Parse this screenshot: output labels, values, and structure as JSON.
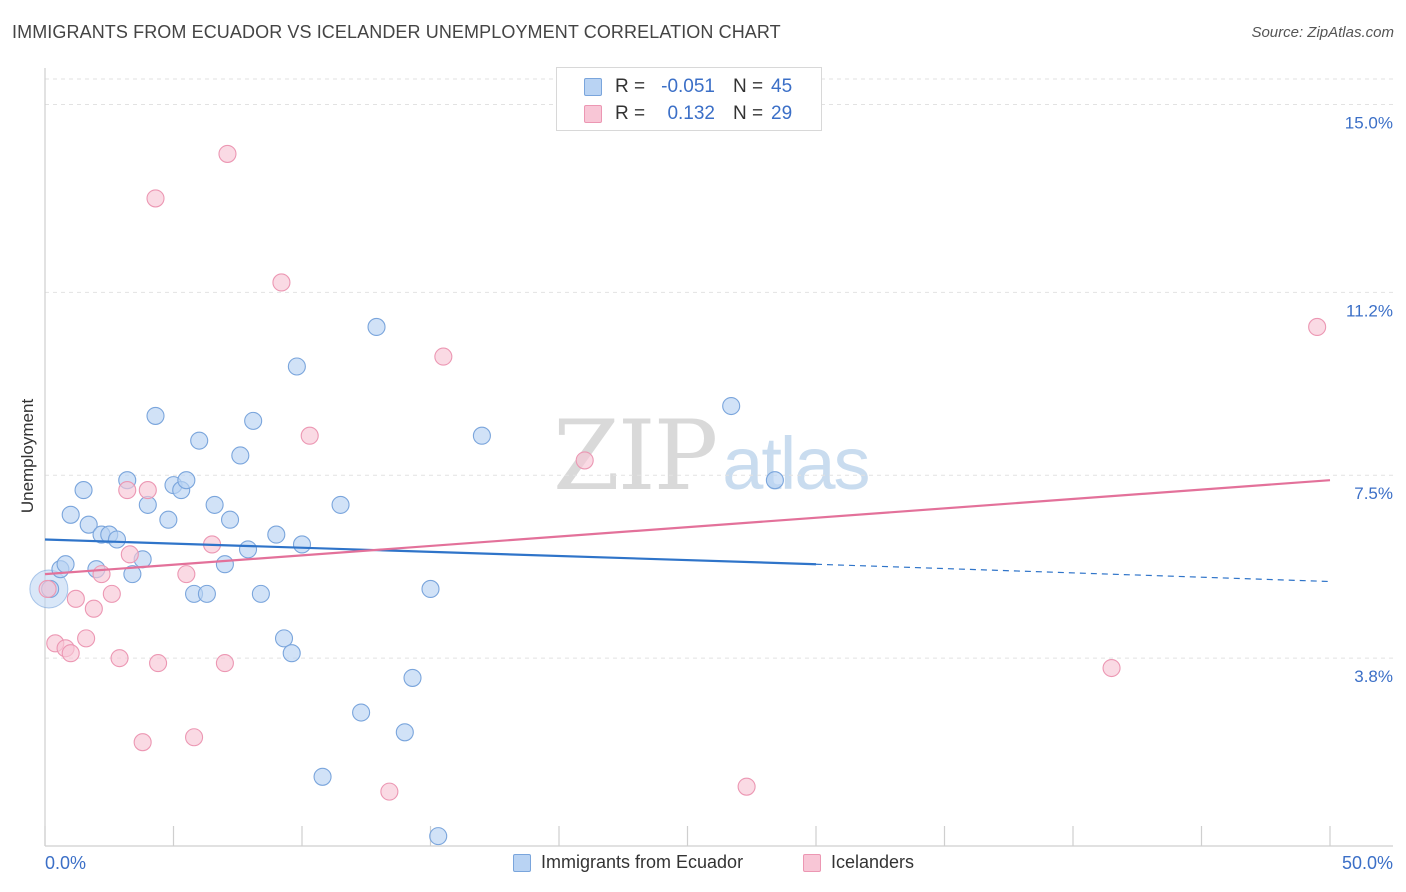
{
  "header": {
    "title": "IMMIGRANTS FROM ECUADOR VS ICELANDER UNEMPLOYMENT CORRELATION CHART",
    "source": "Source: ZipAtlas.com"
  },
  "watermark": {
    "zip": "ZIP",
    "atlas": "atlas"
  },
  "legend_top": {
    "r_label": "R =",
    "n_label": "N =",
    "rows": [
      {
        "r": "-0.051",
        "n": "45"
      },
      {
        "r": "0.132",
        "n": "29"
      }
    ]
  },
  "colors": {
    "blue_fill": "#b9d3f3",
    "blue_stroke": "#7aa5dc",
    "blue_line": "#2f74c9",
    "pink_fill": "#f8c6d6",
    "pink_stroke": "#ec97b3",
    "pink_line": "#e3719a",
    "tick_label": "#3b6fc7",
    "grid": "#e2e2e2"
  },
  "chart_data": {
    "type": "scatter",
    "title": "IMMIGRANTS FROM ECUADOR VS ICELANDER UNEMPLOYMENT CORRELATION CHART",
    "xlabel": "",
    "ylabel": "Unemployment",
    "xlim": [
      0,
      50
    ],
    "ylim": [
      0,
      15.9
    ],
    "x_tick_labels": [
      "0.0%",
      "50.0%"
    ],
    "y_ticks": [
      3.8,
      7.5,
      11.2,
      15.0
    ],
    "y_tick_labels": [
      "3.8%",
      "7.5%",
      "11.2%",
      "15.0%"
    ],
    "grid": true,
    "legend_position": "top-center",
    "series": [
      {
        "name": "Immigrants from Ecuador",
        "color": "#7aa5dc",
        "points": [
          [
            0.2,
            5.2
          ],
          [
            0.6,
            5.6
          ],
          [
            0.8,
            5.7
          ],
          [
            1.0,
            6.7
          ],
          [
            1.5,
            7.2
          ],
          [
            1.7,
            6.5
          ],
          [
            2.0,
            5.6
          ],
          [
            2.2,
            6.3
          ],
          [
            2.5,
            6.3
          ],
          [
            2.8,
            6.2
          ],
          [
            3.2,
            7.4
          ],
          [
            3.4,
            5.5
          ],
          [
            3.8,
            5.8
          ],
          [
            4.0,
            6.9
          ],
          [
            4.3,
            8.7
          ],
          [
            4.8,
            6.6
          ],
          [
            5.0,
            7.3
          ],
          [
            5.3,
            7.2
          ],
          [
            5.5,
            7.4
          ],
          [
            5.8,
            5.1
          ],
          [
            6.0,
            8.2
          ],
          [
            6.3,
            5.1
          ],
          [
            6.6,
            6.9
          ],
          [
            7.0,
            5.7
          ],
          [
            7.2,
            6.6
          ],
          [
            7.6,
            7.9
          ],
          [
            7.9,
            6.0
          ],
          [
            8.1,
            8.6
          ],
          [
            8.4,
            5.1
          ],
          [
            9.0,
            6.3
          ],
          [
            9.3,
            4.2
          ],
          [
            9.6,
            3.9
          ],
          [
            9.8,
            9.7
          ],
          [
            10.0,
            6.1
          ],
          [
            10.8,
            1.4
          ],
          [
            11.5,
            6.9
          ],
          [
            12.3,
            2.7
          ],
          [
            12.9,
            10.5
          ],
          [
            14.0,
            2.3
          ],
          [
            14.3,
            3.4
          ],
          [
            15.0,
            5.2
          ],
          [
            15.3,
            0.2
          ],
          [
            17.0,
            8.3
          ],
          [
            26.7,
            8.9
          ],
          [
            28.4,
            7.4
          ]
        ]
      },
      {
        "name": "Icelanders",
        "color": "#ec97b3",
        "points": [
          [
            0.4,
            4.1
          ],
          [
            0.8,
            4.0
          ],
          [
            1.0,
            3.9
          ],
          [
            1.2,
            5.0
          ],
          [
            1.6,
            4.2
          ],
          [
            1.9,
            4.8
          ],
          [
            2.2,
            5.5
          ],
          [
            2.6,
            5.1
          ],
          [
            2.9,
            3.8
          ],
          [
            3.2,
            7.2
          ],
          [
            3.3,
            5.9
          ],
          [
            3.8,
            2.1
          ],
          [
            4.0,
            7.2
          ],
          [
            4.3,
            13.1
          ],
          [
            4.4,
            3.7
          ],
          [
            5.5,
            5.5
          ],
          [
            5.8,
            2.2
          ],
          [
            6.5,
            6.1
          ],
          [
            7.0,
            3.7
          ],
          [
            7.1,
            14.0
          ],
          [
            9.2,
            11.4
          ],
          [
            10.3,
            8.3
          ],
          [
            13.4,
            1.1
          ],
          [
            15.5,
            9.9
          ],
          [
            21.0,
            7.8
          ],
          [
            27.3,
            1.2
          ],
          [
            41.5,
            3.6
          ],
          [
            49.5,
            10.5
          ],
          [
            0.1,
            5.2
          ]
        ]
      }
    ],
    "trendlines": [
      {
        "series": "Immigrants from Ecuador",
        "from": [
          0,
          6.2
        ],
        "to": [
          30,
          5.7
        ],
        "dashed_to": [
          50,
          5.35
        ]
      },
      {
        "series": "Icelanders",
        "from": [
          0,
          5.5
        ],
        "to": [
          50,
          7.4
        ]
      }
    ]
  },
  "bottom_legend": {
    "items": [
      {
        "label": "Immigrants from Ecuador"
      },
      {
        "label": "Icelanders"
      }
    ]
  }
}
